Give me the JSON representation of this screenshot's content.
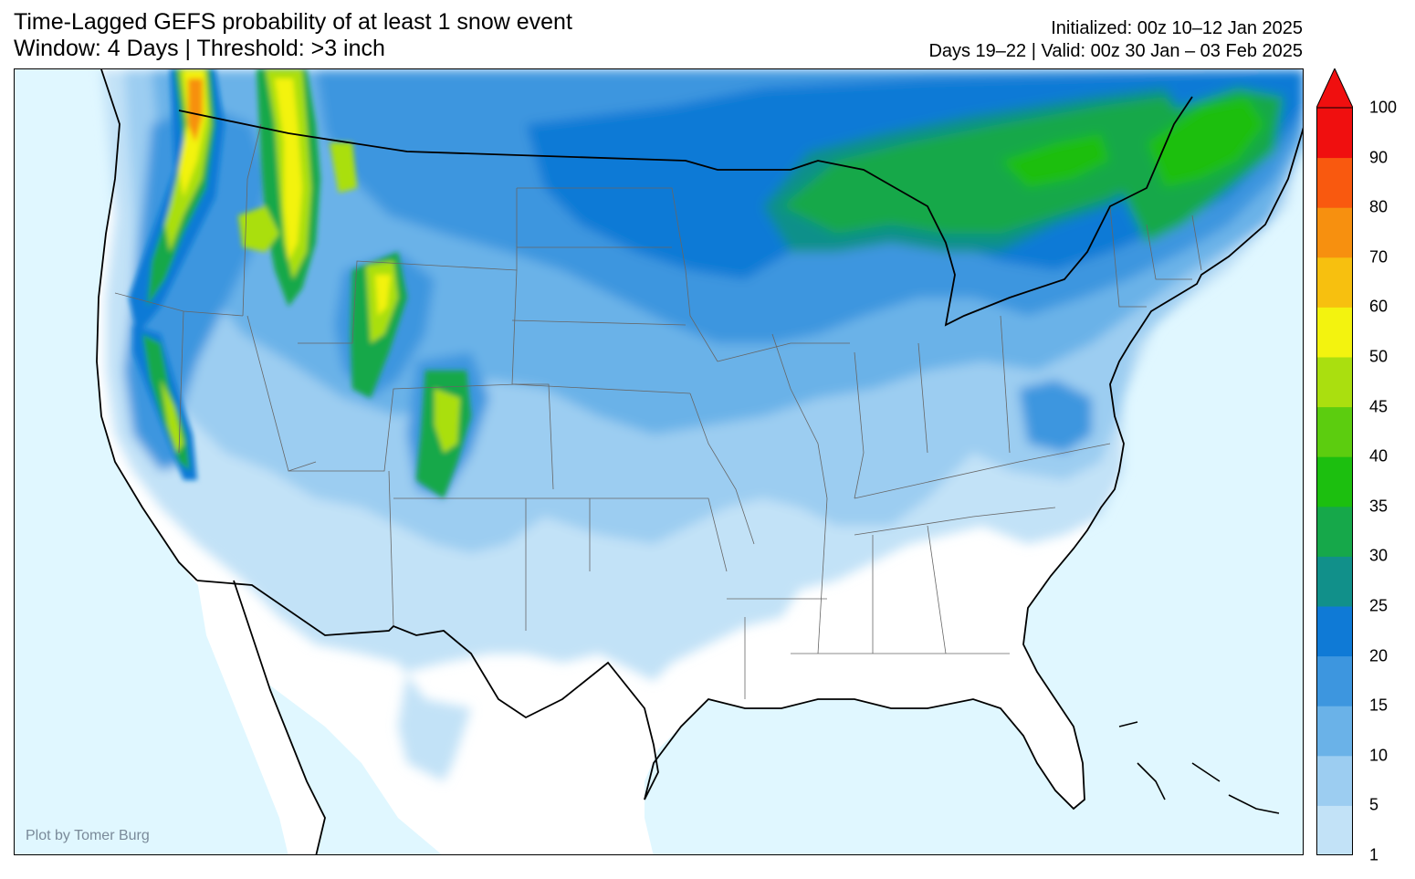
{
  "title": {
    "line1": "Time-Lagged GEFS probability of at least 1 snow event",
    "line2": "Window: 4 Days | Threshold: >3 inch"
  },
  "meta": {
    "initialized": "Initialized: 00z 10–12 Jan 2025",
    "valid": "Days 19–22 | Valid: 00z 30 Jan – 03 Feb 2025"
  },
  "credit": "Plot by Tomer Burg",
  "colorbar": {
    "levels": [
      "1",
      "5",
      "10",
      "15",
      "20",
      "25",
      "30",
      "35",
      "40",
      "45",
      "50",
      "60",
      "70",
      "80",
      "90",
      "100"
    ],
    "colors": [
      "#c2e2f7",
      "#9ccdf1",
      "#6ab2e8",
      "#3d96df",
      "#0f7ad6",
      "#11908a",
      "#16a84a",
      "#1cbf0f",
      "#5ccd0f",
      "#aadf0f",
      "#f3f30f",
      "#f7c00f",
      "#f7900f",
      "#f9590f",
      "#f00f0f"
    ],
    "extend": "max",
    "max_color": "#f00f0f"
  },
  "colors": {
    "ocean": "#e0f7ff",
    "land": "#ffffff"
  }
}
